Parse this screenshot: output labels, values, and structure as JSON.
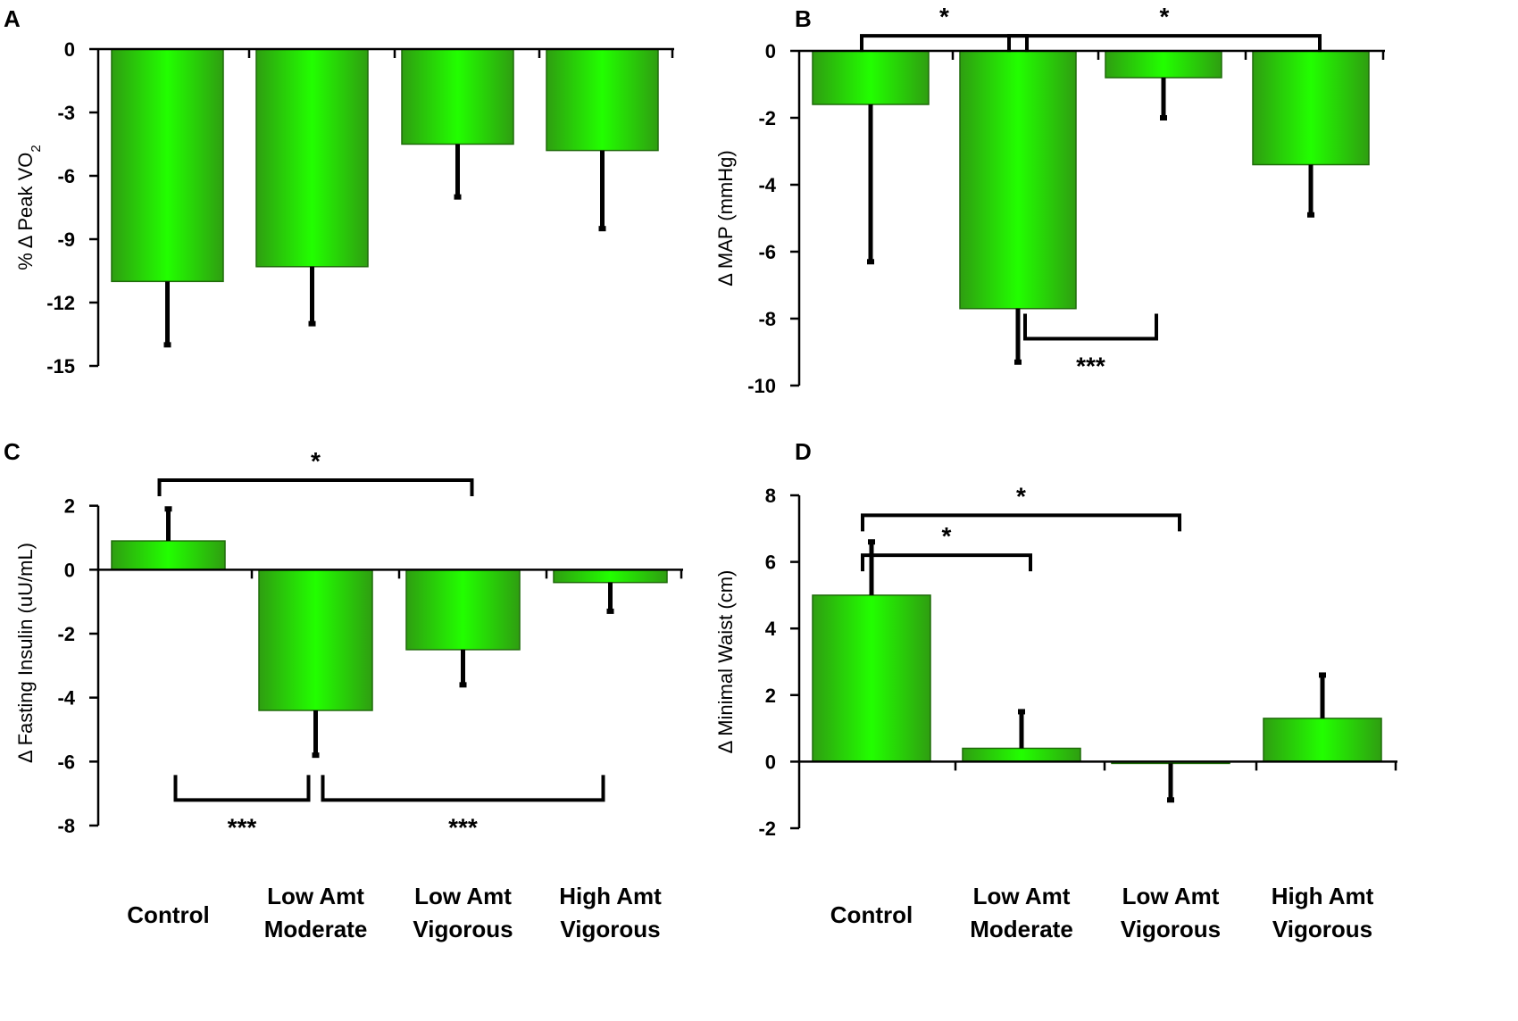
{
  "chart_data": [
    {
      "panel": "A",
      "type": "bar",
      "ylabel": "% Δ Peak VO",
      "ylabel_sub": "2",
      "ylim": [
        -15,
        0
      ],
      "yticks": [
        "0",
        "-3",
        "-6",
        "-9",
        "-12",
        "-15"
      ],
      "ytick_values": [
        0,
        -3,
        -6,
        -9,
        -12,
        -15
      ],
      "categories": [
        "Control",
        "Low Amt Moderate",
        "Low Amt Vigorous",
        "High Amt Vigorous"
      ],
      "values": [
        -11.0,
        -10.3,
        -4.5,
        -4.8
      ],
      "errors": [
        3.0,
        2.7,
        2.5,
        3.7
      ],
      "significance": []
    },
    {
      "panel": "B",
      "type": "bar",
      "ylabel": "Δ MAP (mmHg)",
      "ylim": [
        -10,
        0
      ],
      "yticks": [
        "0",
        "-2",
        "-4",
        "-6",
        "-8",
        "-10"
      ],
      "ytick_values": [
        0,
        -2,
        -4,
        -6,
        -8,
        -10
      ],
      "categories": [
        "Control",
        "Low Amt Moderate",
        "Low Amt Vigorous",
        "High Amt Vigorous"
      ],
      "values": [
        -1.6,
        -7.7,
        -0.8,
        -3.4
      ],
      "errors": [
        4.7,
        1.6,
        1.2,
        1.5
      ],
      "significance": [
        {
          "from": 0,
          "to": 1,
          "label": "*",
          "side": "top",
          "level": 0.45
        },
        {
          "from": 1,
          "to": 3,
          "label": "*",
          "side": "top",
          "level": 0.45
        },
        {
          "from": 1,
          "to": 2,
          "label": "***",
          "side": "bottom",
          "level": -8.6
        }
      ]
    },
    {
      "panel": "C",
      "type": "bar",
      "ylabel": "Δ Fasting Insulin (uU/mL)",
      "ylim": [
        -8,
        2
      ],
      "ylim_plot": [
        -8,
        2.8
      ],
      "yticks": [
        "2",
        "0",
        "-2",
        "-4",
        "-6",
        "-8"
      ],
      "ytick_values": [
        2,
        0,
        -2,
        -4,
        -6,
        -8
      ],
      "categories": [
        "Control",
        "Low Amt Moderate",
        "Low Amt Vigorous",
        "High Amt Vigorous"
      ],
      "values": [
        0.9,
        -4.4,
        -2.5,
        -0.4
      ],
      "errors": [
        1.0,
        1.4,
        1.1,
        0.9
      ],
      "significance": [
        {
          "from": 0,
          "to": 2,
          "label": "*",
          "side": "top",
          "level": 2.8
        },
        {
          "from": 0,
          "to": 1,
          "label": "***",
          "side": "bottom",
          "level": -7.2
        },
        {
          "from": 1,
          "to": 3,
          "label": "***",
          "side": "bottom",
          "level": -7.2
        }
      ]
    },
    {
      "panel": "D",
      "type": "bar",
      "ylabel": "Δ Minimal Waist (cm)",
      "ylim": [
        -2,
        8
      ],
      "yticks": [
        "8",
        "6",
        "4",
        "2",
        "0",
        "-2"
      ],
      "ytick_values": [
        8,
        6,
        4,
        2,
        0,
        -2
      ],
      "categories": [
        "Control",
        "Low Amt Moderate",
        "Low Amt Vigorous",
        "High Amt Vigorous"
      ],
      "values": [
        5.0,
        0.4,
        -0.05,
        1.3
      ],
      "errors": [
        1.6,
        1.1,
        1.1,
        1.3
      ],
      "significance": [
        {
          "from": 0,
          "to": 2,
          "label": "*",
          "side": "top",
          "level": 7.4
        },
        {
          "from": 0,
          "to": 1,
          "label": "*",
          "side": "top",
          "level": 6.2
        }
      ]
    }
  ],
  "category_labels": [
    {
      "line1": "Control",
      "line2": ""
    },
    {
      "line1": "Low Amt",
      "line2": "Moderate"
    },
    {
      "line1": "Low Amt",
      "line2": "Vigorous"
    },
    {
      "line1": "High Amt",
      "line2": "Vigorous"
    }
  ],
  "colors": {
    "bar_edge": "#1f6b0a",
    "bar_mid": "#22ff00",
    "bar_dark": "#2f9e11",
    "axis": "#000000"
  }
}
